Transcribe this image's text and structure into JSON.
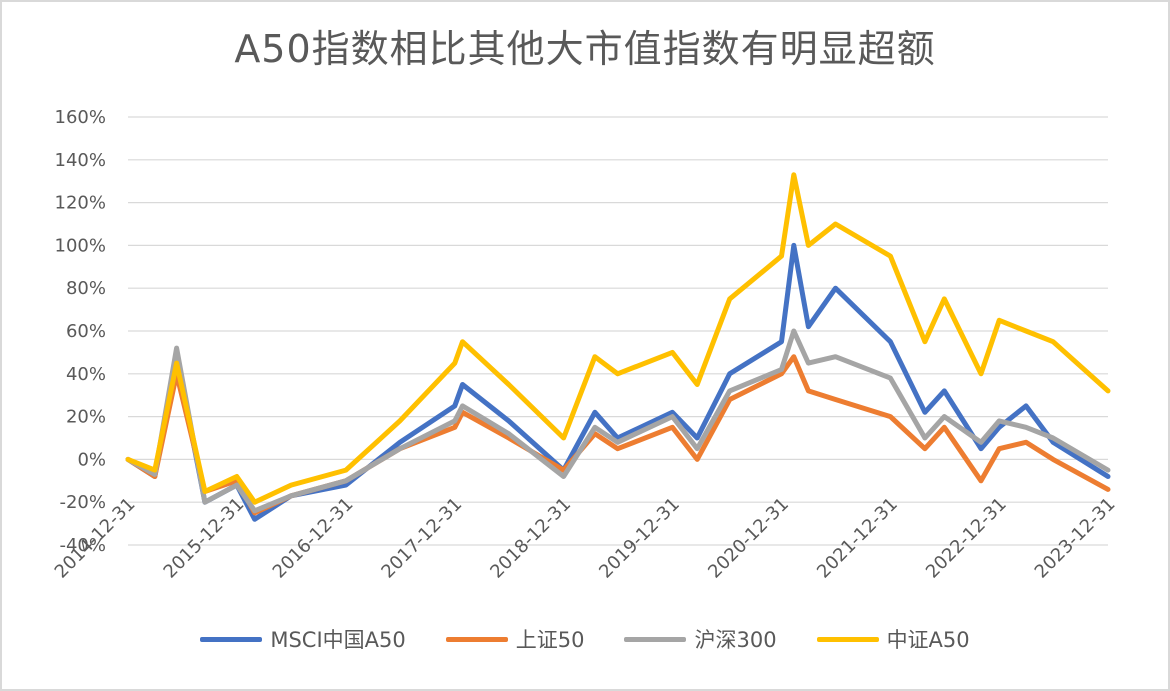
{
  "chart_data": {
    "type": "line",
    "title": "A50指数相比其他大市值指数有明显超额",
    "xlabel": "",
    "ylabel": "",
    "ylim": [
      -40,
      160
    ],
    "yticks": [
      "160%",
      "140%",
      "120%",
      "100%",
      "80%",
      "60%",
      "40%",
      "20%",
      "0%",
      "-20%",
      "-40%"
    ],
    "xticks": [
      "2014-12-31",
      "2015-12-31",
      "2016-12-31",
      "2017-12-31",
      "2018-12-31",
      "2019-12-31",
      "2020-12-31",
      "2021-12-31",
      "2022-12-31",
      "2023-12-31"
    ],
    "grid": true,
    "legend_position": "bottom",
    "x": [
      "2014-12-31",
      "2015-03-31",
      "2015-06-12",
      "2015-09-15",
      "2015-12-31",
      "2016-02-29",
      "2016-06-30",
      "2016-12-31",
      "2017-06-30",
      "2017-12-31",
      "2018-01-26",
      "2018-06-30",
      "2018-12-31",
      "2019-04-15",
      "2019-06-30",
      "2019-12-31",
      "2020-03-23",
      "2020-07-10",
      "2020-12-31",
      "2021-02-10",
      "2021-03-31",
      "2021-06-30",
      "2021-12-31",
      "2022-04-26",
      "2022-06-30",
      "2022-10-31",
      "2022-12-31",
      "2023-03-31",
      "2023-06-30",
      "2023-12-31"
    ],
    "series": [
      {
        "name": "MSCI中国A50",
        "color": "#4472c4",
        "values": [
          0,
          -8,
          48,
          -20,
          -12,
          -28,
          -17,
          -12,
          8,
          25,
          35,
          18,
          -5,
          22,
          10,
          22,
          10,
          40,
          55,
          100,
          62,
          80,
          55,
          22,
          32,
          5,
          15,
          25,
          8,
          -8
        ]
      },
      {
        "name": "上证50",
        "color": "#ed7d31",
        "values": [
          0,
          -8,
          40,
          -15,
          -10,
          -25,
          -17,
          -10,
          5,
          15,
          22,
          10,
          -5,
          12,
          5,
          15,
          0,
          28,
          40,
          48,
          32,
          28,
          20,
          5,
          15,
          -10,
          5,
          8,
          0,
          -14
        ]
      },
      {
        "name": "沪深300",
        "color": "#a5a5a5",
        "values": [
          0,
          -7,
          52,
          -20,
          -12,
          -24,
          -17,
          -10,
          5,
          18,
          25,
          12,
          -8,
          15,
          8,
          20,
          5,
          32,
          42,
          60,
          45,
          48,
          38,
          10,
          20,
          8,
          18,
          15,
          10,
          -5
        ]
      },
      {
        "name": "中证A50",
        "color": "#ffc000",
        "values": [
          0,
          -5,
          45,
          -15,
          -8,
          -20,
          -12,
          -5,
          18,
          45,
          55,
          35,
          10,
          48,
          40,
          50,
          35,
          75,
          95,
          133,
          100,
          110,
          95,
          55,
          75,
          40,
          65,
          60,
          55,
          32
        ]
      }
    ]
  }
}
